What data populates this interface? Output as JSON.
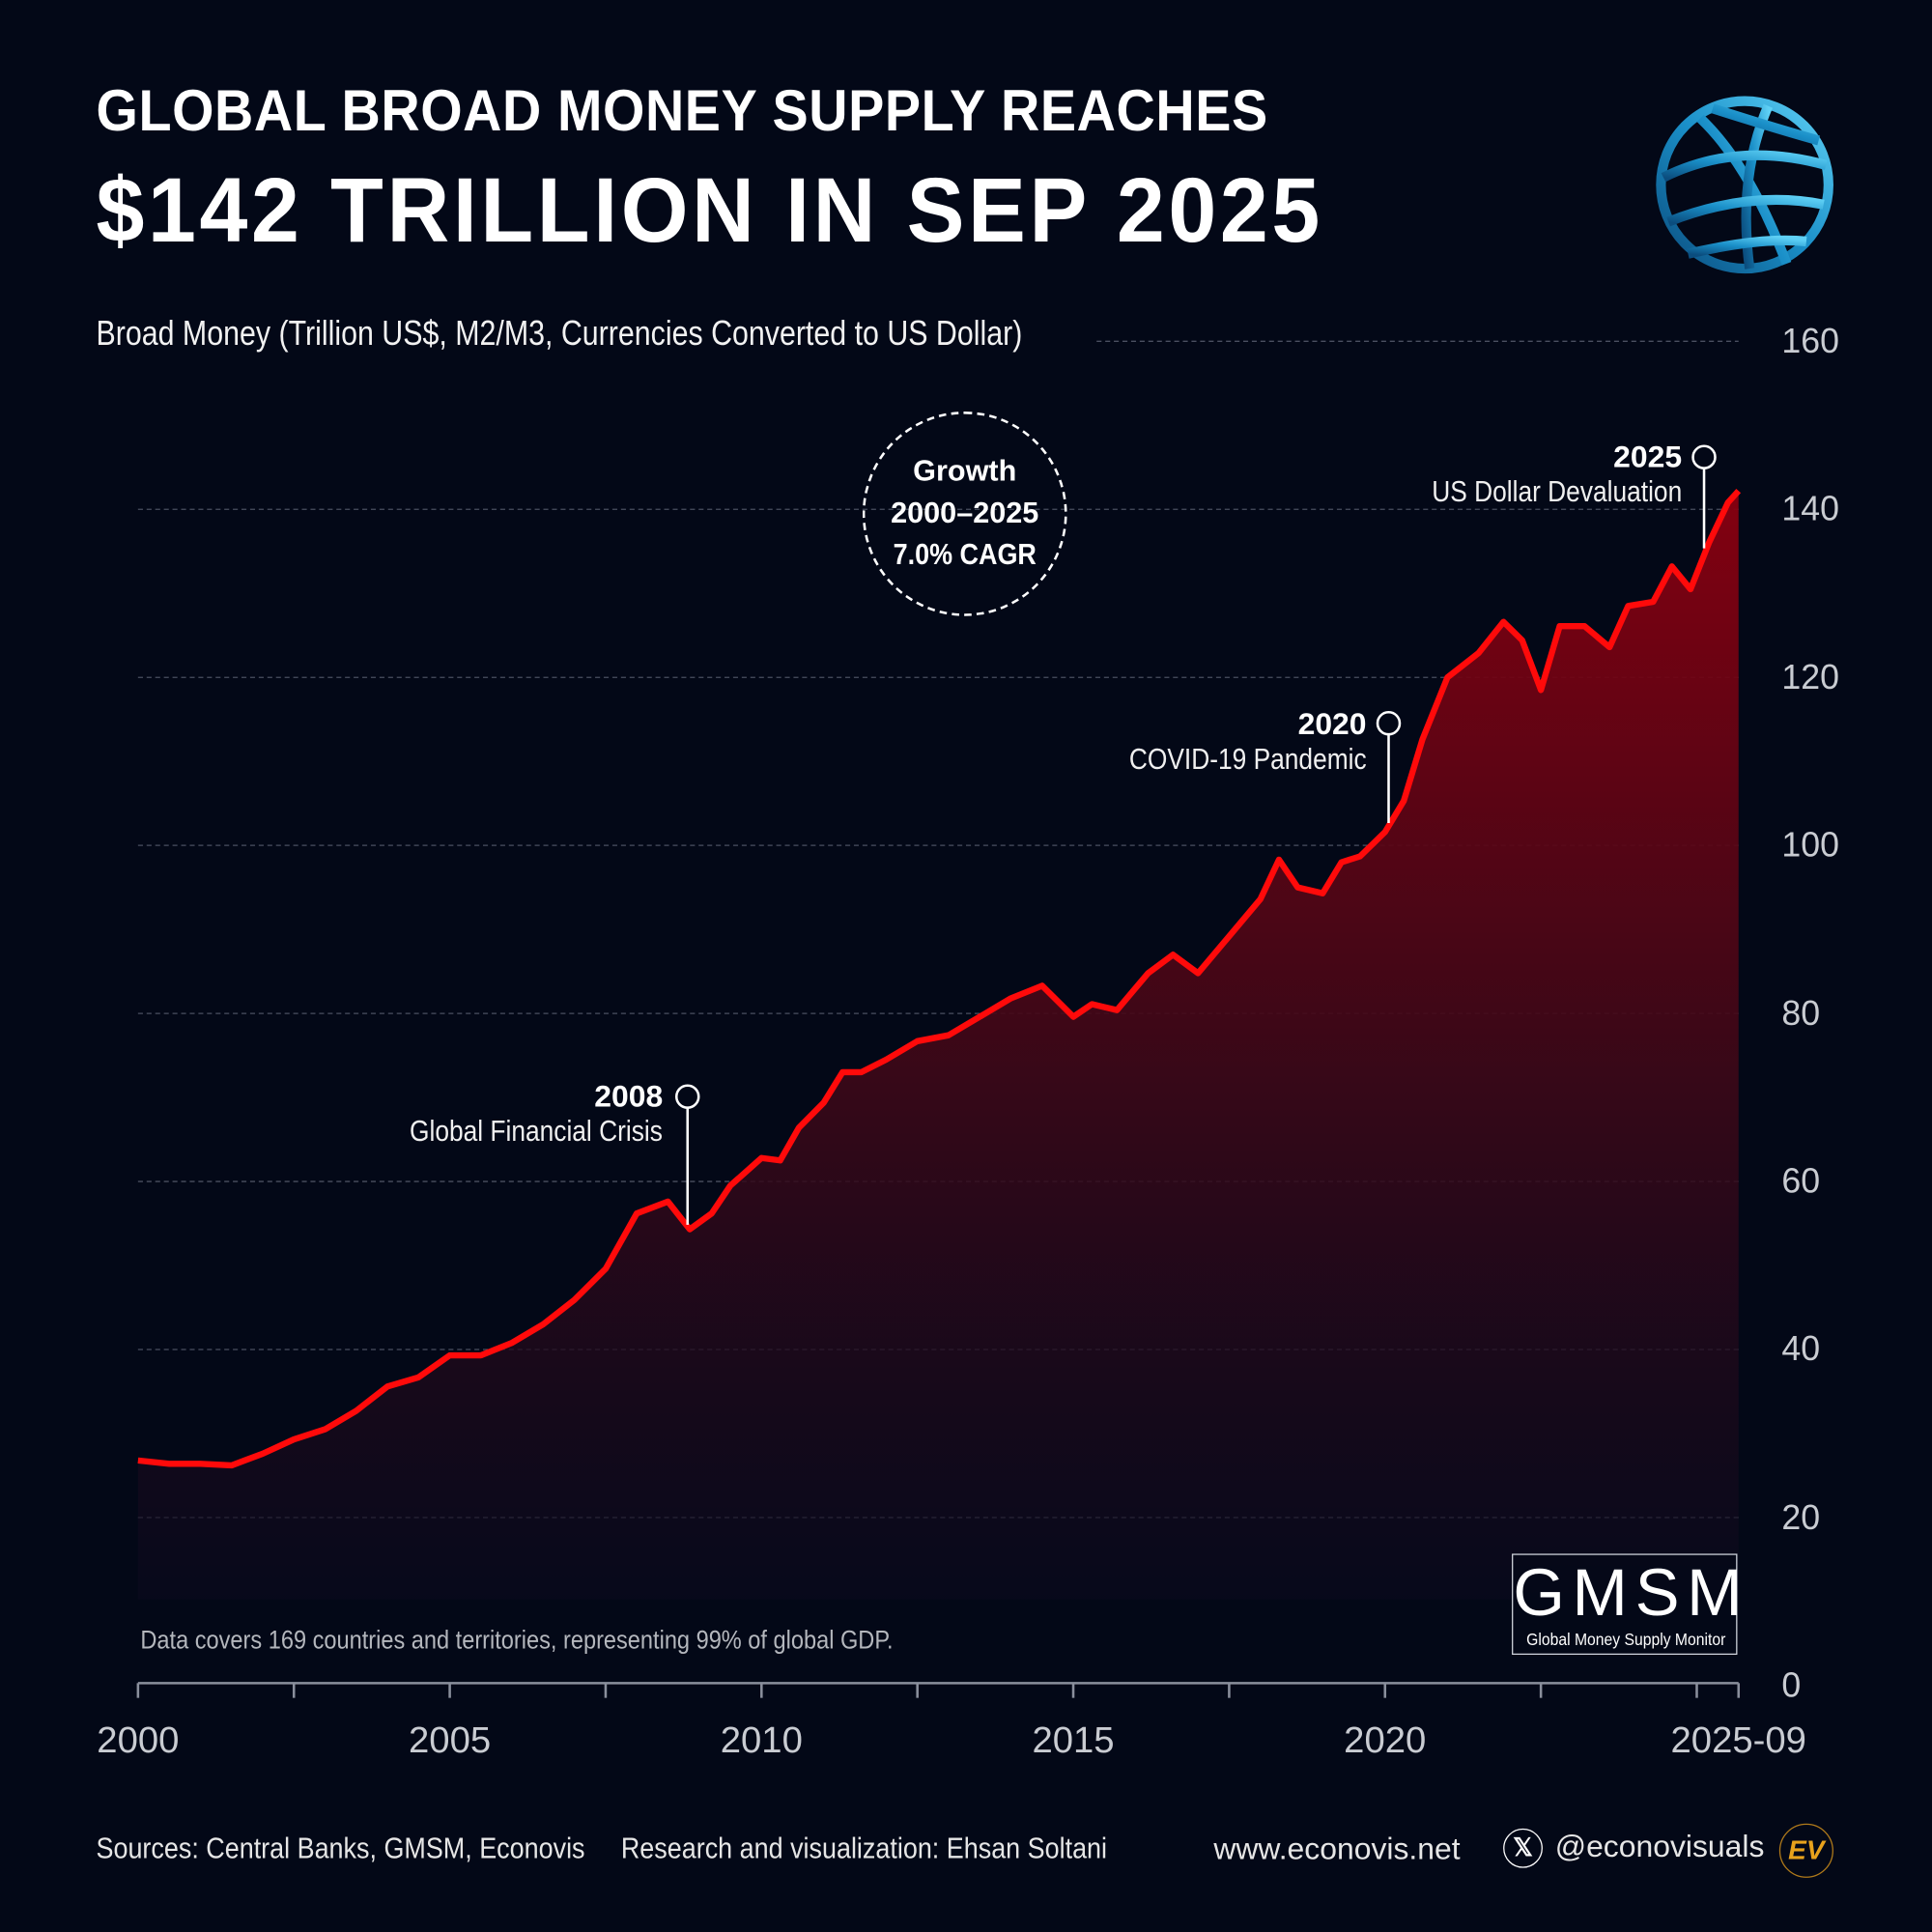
{
  "header": {
    "title_line1": "GLOBAL BROAD MONEY SUPPLY REACHES",
    "title_line2": "$142 TRILLION IN SEP 2025"
  },
  "logo": {
    "name": "globe-logo",
    "color": "#1fa3dc"
  },
  "chart_data": {
    "type": "area",
    "ylabel": "Broad Money (Trillion US$, M2/M3, Currencies Converted to US Dollar)",
    "ylim": [
      0,
      160
    ],
    "yticks": [
      0,
      20,
      40,
      60,
      80,
      100,
      120,
      140,
      160
    ],
    "xlim": [
      2000,
      2025.67
    ],
    "xtick_labels": [
      {
        "x": 2000,
        "label": "2000"
      },
      {
        "x": 2005,
        "label": "2005"
      },
      {
        "x": 2010,
        "label": "2010"
      },
      {
        "x": 2015,
        "label": "2015"
      },
      {
        "x": 2020,
        "label": "2020"
      },
      {
        "x": 2025.67,
        "label": "2025-09"
      }
    ],
    "grid": true,
    "line_color": "#ff0a0a",
    "fill_color": "#8a0010",
    "series": [
      {
        "x": [
          2000.0,
          2000.5,
          2001.0,
          2001.5,
          2002.0,
          2002.5,
          2003.0,
          2003.5,
          2004.0,
          2004.5,
          2005.0,
          2005.5,
          2006.0,
          2006.5,
          2007.0,
          2007.5,
          2008.0,
          2008.5,
          2008.85,
          2009.2,
          2009.5,
          2010.0,
          2010.3,
          2010.6,
          2011.0,
          2011.3,
          2011.6,
          2012.0,
          2012.5,
          2013.0,
          2013.5,
          2014.0,
          2014.5,
          2015.0,
          2015.3,
          2015.7,
          2016.2,
          2016.6,
          2017.0,
          2017.5,
          2018.0,
          2018.3,
          2018.6,
          2019.0,
          2019.3,
          2019.6,
          2020.0,
          2020.3,
          2020.6,
          2021.0,
          2021.5,
          2021.9,
          2022.2,
          2022.5,
          2022.8,
          2023.2,
          2023.6,
          2023.9,
          2024.3,
          2024.6,
          2024.9,
          2025.2,
          2025.5,
          2025.67
        ],
        "y": [
          26.8,
          26.4,
          26.4,
          26.2,
          27.6,
          29.3,
          30.5,
          32.7,
          35.6,
          36.7,
          39.3,
          39.3,
          40.8,
          43.0,
          45.9,
          49.6,
          56.2,
          57.6,
          54.3,
          56.2,
          59.5,
          62.8,
          62.5,
          66.4,
          69.4,
          73.0,
          73.0,
          74.5,
          76.7,
          77.4,
          79.6,
          81.8,
          83.3,
          79.6,
          81.1,
          80.4,
          84.8,
          87.0,
          84.8,
          89.2,
          93.6,
          98.3,
          95.0,
          94.3,
          98.0,
          98.7,
          101.6,
          105.3,
          112.6,
          120.0,
          122.9,
          126.6,
          124.4,
          118.5,
          126.1,
          126.1,
          123.6,
          128.5,
          129.0,
          133.2,
          130.5,
          136.1,
          140.8,
          142.2
        ]
      }
    ],
    "annotations": [
      {
        "year": "2008",
        "label": "Global Financial Crisis"
      },
      {
        "year": "2020",
        "label": "COVID-19 Pandemic"
      },
      {
        "year": "2025",
        "label": "US Dollar Devaluation"
      }
    ],
    "growth_badge": {
      "line1": "Growth",
      "line2": "2000–2025",
      "line3": "7.0% CAGR"
    },
    "note": "Data covers 169 countries and territories, representing 99% of global GDP."
  },
  "gmsm": {
    "big": "GMSM",
    "small": "Global Money Supply Monitor"
  },
  "footer": {
    "sources": "Sources: Central Banks, GMSM, Econovis",
    "credit": "Research and visualization: Ehsan Soltani",
    "website": "www.econovis.net",
    "handle": "@econovisuals",
    "ev_logo": "EV",
    "ev_color": "#e8a21c"
  }
}
